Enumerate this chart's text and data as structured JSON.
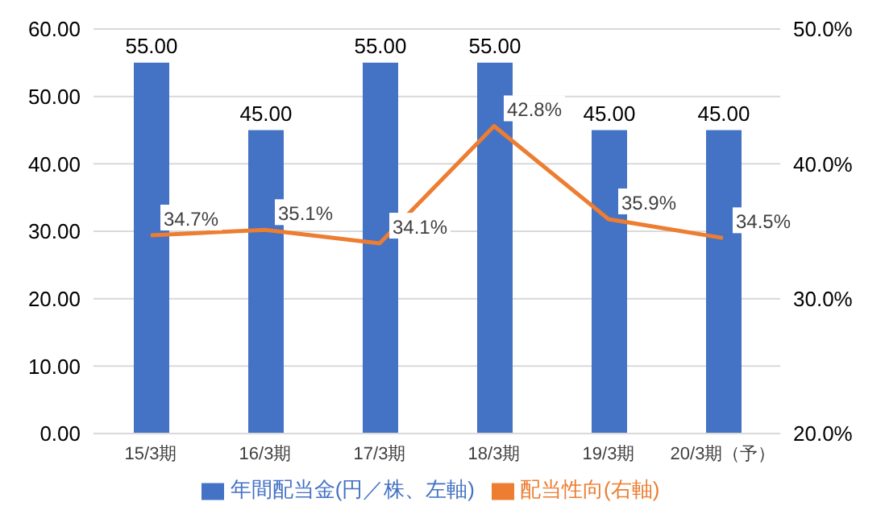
{
  "chart_data": {
    "type": "bar",
    "categories": [
      "15/3期",
      "16/3期",
      "17/3期",
      "18/3期",
      "19/3期",
      "20/3期（予）"
    ],
    "series": [
      {
        "name": "年間配当金(円／株、左軸)",
        "color": "#4472c4",
        "values": [
          55,
          45,
          55,
          55,
          45,
          45
        ],
        "value_labels": [
          "55.00",
          "45.00",
          "55.00",
          "55.00",
          "45.00",
          "45.00"
        ]
      },
      {
        "name": "配当性向(右軸)",
        "type": "line",
        "axis": "y2",
        "color": "#ed7d31",
        "values": [
          34.7,
          35.1,
          34.1,
          42.8,
          35.9,
          34.5
        ],
        "value_labels": [
          "34.7%",
          "35.1%",
          "34.1%",
          "42.8%",
          "35.9%",
          "34.5%"
        ]
      }
    ],
    "ylim": [
      0,
      60
    ],
    "yticks": [
      {
        "value": 0,
        "label": "0.00"
      },
      {
        "value": 10,
        "label": "10.00"
      },
      {
        "value": 20,
        "label": "20.00"
      },
      {
        "value": 30,
        "label": "30.00"
      },
      {
        "value": 40,
        "label": "40.00"
      },
      {
        "value": 50,
        "label": "50.00"
      },
      {
        "value": 60,
        "label": "60.00"
      }
    ],
    "y2lim": [
      20,
      50
    ],
    "y2ticks": [
      {
        "value": 20,
        "label": "20.0%"
      },
      {
        "value": 30,
        "label": "30.0%"
      },
      {
        "value": 40,
        "label": "40.0%"
      },
      {
        "value": 50,
        "label": "50.0%"
      }
    ],
    "grid": "y",
    "legend": "bottom",
    "marker": "none",
    "line_style": "solid"
  }
}
